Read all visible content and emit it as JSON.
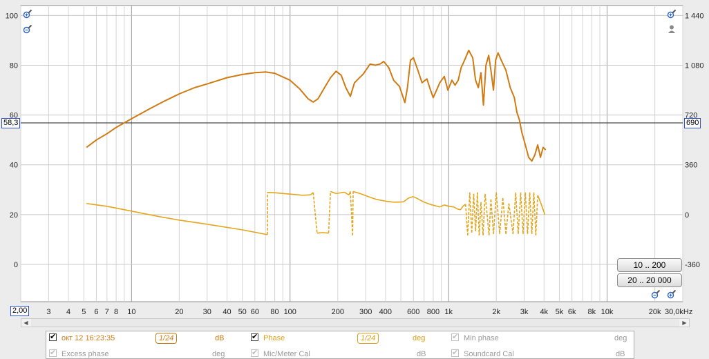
{
  "y_left": {
    "unit": "dB",
    "ticks": [
      {
        "value": 100,
        "label": "100"
      },
      {
        "value": 80,
        "label": "80"
      },
      {
        "value": 60,
        "label": "60"
      },
      {
        "value": 40,
        "label": "40"
      },
      {
        "value": 20,
        "label": "20"
      },
      {
        "value": 0,
        "label": "0"
      }
    ]
  },
  "y_right": {
    "unit": "deg",
    "ticks": [
      {
        "value": 1440,
        "label": "1 440"
      },
      {
        "value": 1080,
        "label": "1 080"
      },
      {
        "value": 720,
        "label": "720"
      },
      {
        "value": 360,
        "label": "360"
      },
      {
        "value": 0,
        "label": "0"
      },
      {
        "value": -360,
        "label": "-360"
      }
    ]
  },
  "x_axis": {
    "unit": "kHz",
    "ticks": [
      {
        "value": 3,
        "label": "3"
      },
      {
        "value": 4,
        "label": "4"
      },
      {
        "value": 5,
        "label": "5"
      },
      {
        "value": 6,
        "label": "6"
      },
      {
        "value": 7,
        "label": "7"
      },
      {
        "value": 8,
        "label": "8"
      },
      {
        "value": 10,
        "label": "10"
      },
      {
        "value": 20,
        "label": "20"
      },
      {
        "value": 30,
        "label": "30"
      },
      {
        "value": 40,
        "label": "40"
      },
      {
        "value": 50,
        "label": "50"
      },
      {
        "value": 60,
        "label": "60"
      },
      {
        "value": 80,
        "label": "80"
      },
      {
        "value": 100,
        "label": "100"
      },
      {
        "value": 200,
        "label": "200"
      },
      {
        "value": 300,
        "label": "300"
      },
      {
        "value": 400,
        "label": "400"
      },
      {
        "value": 600,
        "label": "600"
      },
      {
        "value": 800,
        "label": "800"
      },
      {
        "value": 1000,
        "label": "1k"
      },
      {
        "value": 2000,
        "label": "2k"
      },
      {
        "value": 3000,
        "label": "3k"
      },
      {
        "value": 4000,
        "label": "4k"
      },
      {
        "value": 5000,
        "label": "5k"
      },
      {
        "value": 6000,
        "label": "6k"
      },
      {
        "value": 8000,
        "label": "8k"
      },
      {
        "value": 10000,
        "label": "10k"
      },
      {
        "value": 20000,
        "label": "20k"
      }
    ],
    "end_label": "30,0kHz",
    "start_readout": "2,00"
  },
  "cursor": {
    "left_label": "58,3",
    "right_label": "690"
  },
  "range_buttons": [
    "10 .. 200",
    "20 .. 20 000"
  ],
  "chart_data": {
    "type": "line",
    "x_scale": "log",
    "xlim": [
      2,
      30000
    ],
    "ylim_left": [
      -15,
      104
    ],
    "series": [
      {
        "name": "окт 12 16:23:35",
        "axis": "dB",
        "color": "#d07a12",
        "points": [
          [
            5.2,
            47
          ],
          [
            6,
            50
          ],
          [
            7,
            52.5
          ],
          [
            8,
            55
          ],
          [
            10,
            58.5
          ],
          [
            13,
            62.5
          ],
          [
            16,
            65.5
          ],
          [
            20,
            68.5
          ],
          [
            25,
            71
          ],
          [
            30,
            72.5
          ],
          [
            40,
            75
          ],
          [
            50,
            76.3
          ],
          [
            60,
            77
          ],
          [
            70,
            77.3
          ],
          [
            80,
            76.8
          ],
          [
            100,
            74
          ],
          [
            115,
            70.5
          ],
          [
            130,
            66.5
          ],
          [
            140,
            65.2
          ],
          [
            150,
            66.5
          ],
          [
            165,
            71
          ],
          [
            180,
            75
          ],
          [
            195,
            77.6
          ],
          [
            210,
            76
          ],
          [
            225,
            71
          ],
          [
            240,
            67.5
          ],
          [
            255,
            73
          ],
          [
            290,
            76.5
          ],
          [
            320,
            80.5
          ],
          [
            345,
            80
          ],
          [
            370,
            80.5
          ],
          [
            390,
            81.5
          ],
          [
            420,
            79
          ],
          [
            450,
            74
          ],
          [
            490,
            71.5
          ],
          [
            530,
            65
          ],
          [
            550,
            71
          ],
          [
            575,
            82
          ],
          [
            600,
            83
          ],
          [
            640,
            78
          ],
          [
            680,
            73
          ],
          [
            730,
            74.5
          ],
          [
            760,
            71
          ],
          [
            800,
            67
          ],
          [
            840,
            70
          ],
          [
            880,
            73
          ],
          [
            940,
            75.5
          ],
          [
            990,
            70
          ],
          [
            1050,
            74
          ],
          [
            1100,
            72
          ],
          [
            1150,
            74
          ],
          [
            1200,
            79
          ],
          [
            1260,
            82
          ],
          [
            1340,
            86
          ],
          [
            1420,
            83
          ],
          [
            1480,
            74
          ],
          [
            1540,
            71
          ],
          [
            1600,
            77
          ],
          [
            1660,
            64
          ],
          [
            1720,
            80
          ],
          [
            1790,
            84
          ],
          [
            1850,
            78
          ],
          [
            1920,
            70
          ],
          [
            1980,
            82
          ],
          [
            2050,
            85
          ],
          [
            2150,
            82
          ],
          [
            2300,
            78
          ],
          [
            2450,
            71
          ],
          [
            2600,
            67
          ],
          [
            2700,
            61
          ],
          [
            2800,
            58
          ],
          [
            2900,
            53
          ],
          [
            3050,
            48
          ],
          [
            3200,
            43
          ],
          [
            3350,
            41.5
          ],
          [
            3500,
            44
          ],
          [
            3650,
            48
          ],
          [
            3800,
            43
          ],
          [
            3950,
            47
          ],
          [
            4100,
            46
          ]
        ]
      },
      {
        "name": "Phase",
        "axis": "deg",
        "color": "#e3a51b",
        "points": [
          [
            5.2,
            80
          ],
          [
            7,
            60
          ],
          [
            10,
            25
          ],
          [
            15,
            -15
          ],
          [
            20,
            -40
          ],
          [
            30,
            -70
          ],
          [
            50,
            -110
          ],
          [
            72,
            -145
          ],
          [
            72,
            160
          ],
          [
            80,
            158
          ],
          [
            100,
            148
          ],
          [
            120,
            140
          ],
          [
            135,
            143
          ],
          [
            140,
            160
          ],
          [
            148,
            -134
          ],
          [
            160,
            -130
          ],
          [
            175,
            -134
          ],
          [
            180,
            167
          ],
          [
            195,
            152
          ],
          [
            220,
            162
          ],
          [
            235,
            142
          ],
          [
            240,
            167
          ],
          [
            248,
            -150
          ],
          [
            250,
            167
          ],
          [
            280,
            150
          ],
          [
            320,
            125
          ],
          [
            350,
            110
          ],
          [
            400,
            97
          ],
          [
            450,
            90
          ],
          [
            520,
            92
          ],
          [
            560,
            120
          ],
          [
            600,
            130
          ],
          [
            650,
            110
          ],
          [
            700,
            90
          ],
          [
            760,
            75
          ],
          [
            800,
            68
          ],
          [
            880,
            55
          ],
          [
            940,
            70
          ],
          [
            1000,
            60
          ],
          [
            1080,
            55
          ],
          [
            1140,
            40
          ],
          [
            1190,
            35
          ],
          [
            1230,
            60
          ],
          [
            1280,
            75
          ],
          [
            1320,
            -150
          ],
          [
            1360,
            160
          ],
          [
            1400,
            -130
          ],
          [
            1440,
            150
          ],
          [
            1480,
            -120
          ],
          [
            1520,
            160
          ],
          [
            1560,
            -150
          ],
          [
            1600,
            90
          ],
          [
            1650,
            -150
          ],
          [
            1700,
            150
          ],
          [
            1800,
            -150
          ],
          [
            1850,
            110
          ],
          [
            1920,
            -140
          ],
          [
            2000,
            160
          ],
          [
            2100,
            -140
          ],
          [
            2200,
            120
          ],
          [
            2300,
            -140
          ],
          [
            2400,
            80
          ],
          [
            2550,
            -140
          ],
          [
            2650,
            160
          ],
          [
            2750,
            -140
          ],
          [
            2850,
            160
          ],
          [
            2950,
            -140
          ],
          [
            3050,
            160
          ],
          [
            3150,
            -140
          ],
          [
            3250,
            160
          ],
          [
            3350,
            -140
          ],
          [
            3450,
            160
          ],
          [
            3550,
            -150
          ],
          [
            3650,
            140
          ],
          [
            3800,
            90
          ],
          [
            4050,
            0
          ]
        ]
      }
    ]
  },
  "legend": {
    "rows": [
      [
        {
          "checked": true,
          "label": "окт 12 16:23:35",
          "smoothing": "1/24",
          "unit": "dB",
          "tone": "orange"
        },
        {
          "checked": true,
          "label": "Phase",
          "smoothing": "1/24",
          "unit": "deg",
          "tone": "amber"
        },
        {
          "checked": true,
          "label": "Min phase",
          "smoothing": "",
          "unit": "deg",
          "tone": "grey"
        }
      ],
      [
        {
          "checked": true,
          "label": "Excess phase",
          "smoothing": "",
          "unit": "deg",
          "tone": "grey"
        },
        {
          "checked": true,
          "label": "Mic/Meter Cal",
          "smoothing": "",
          "unit": "dB",
          "tone": "grey"
        },
        {
          "checked": true,
          "label": "Soundcard Cal",
          "smoothing": "",
          "unit": "dB",
          "tone": "grey"
        }
      ]
    ]
  }
}
